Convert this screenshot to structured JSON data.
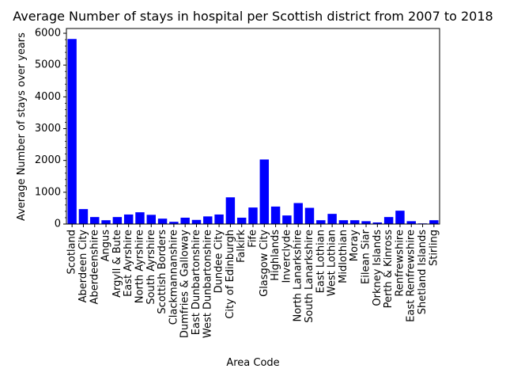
{
  "chart_data": {
    "type": "bar",
    "title": "Average Number of stays in hospital per Scottish district from 2007 to 2018",
    "xlabel": "Area Code",
    "ylabel": "Average Number of stays over years",
    "ylim": [
      0,
      6150
    ],
    "yticks": [
      0,
      1000,
      2000,
      3000,
      4000,
      5000,
      6000
    ],
    "grid": false,
    "bar_color": "#0000ff",
    "categories": [
      "Scotland",
      "Aberdeen City",
      "Aberdeenshire",
      "Angus",
      "Argyll & Bute",
      "East Ayrshire",
      "North Ayrshire",
      "South Ayrshire",
      "Scottish Borders",
      "Clackmannanshire",
      "Dumfries & Galloway",
      "East Dunbartonshire",
      "West Dunbartonshire",
      "Dundee City",
      "City of Edinburgh",
      "Falkirk",
      "Fife",
      "Glasgow City",
      "Highlands",
      "Inverclyde",
      "North Lanarkshire",
      "South Lanarkshire",
      "East Lothian",
      "West Lothian",
      "Midlothian",
      "Moray",
      "Eilean Siar",
      "Orkney Islands",
      "Perth & Kinross",
      "Renfrewshire",
      "East Renfrewshire",
      "Shetland Islands",
      "Stirling"
    ],
    "values": [
      5820,
      470,
      220,
      120,
      220,
      300,
      370,
      290,
      170,
      70,
      200,
      130,
      240,
      300,
      840,
      200,
      520,
      2030,
      550,
      270,
      660,
      510,
      120,
      320,
      120,
      120,
      90,
      50,
      220,
      420,
      90,
      20,
      120
    ]
  }
}
